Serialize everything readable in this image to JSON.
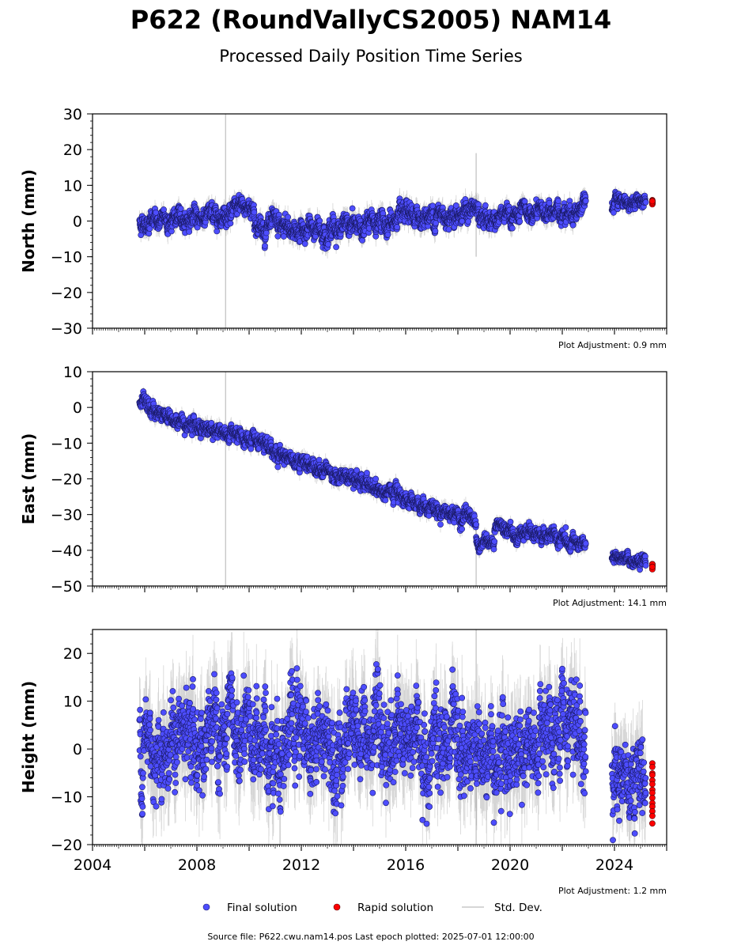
{
  "title": "P622 (RoundVallyCS2005) NAM14",
  "subtitle": "Processed Daily Position Time Series",
  "footer": "Source file: P622.cwu.nam14.pos  Last epoch plotted: 2025-07-01 12:00:00",
  "legend": {
    "final": "Final solution",
    "rapid": "Rapid solution",
    "std": "Std. Dev."
  },
  "colors": {
    "final": "#4d4dff",
    "rapid": "#ff0000",
    "std": "#b0b0b0",
    "outline": "#1a1a66"
  },
  "chart_data": [
    {
      "type": "scatter",
      "ylabel": "North (mm)",
      "ylim": [
        -30,
        30
      ],
      "yticks": [
        -30,
        -20,
        -10,
        0,
        10,
        20,
        30
      ],
      "xlim": [
        2004,
        2026
      ],
      "adjustment": "Plot Adjustment: 0.9 mm",
      "segments": [
        {
          "x": [
            2005.8,
            2008.0,
            2010.2
          ],
          "y": [
            -0.5,
            1.0,
            4.0
          ],
          "noise": 1.6
        },
        {
          "x": [
            2010.2,
            2012.0,
            2014.0,
            2016.0,
            2018.0,
            2018.8
          ],
          "y": [
            -1.5,
            -2.5,
            -1.5,
            0.5,
            2.5,
            3.0
          ],
          "noise": 1.8
        },
        {
          "x": [
            2018.8,
            2020.0,
            2022.9
          ],
          "y": [
            0.5,
            1.0,
            3.5
          ],
          "noise": 1.6
        },
        {
          "x": [
            2023.9,
            2025.2
          ],
          "y": [
            5.0,
            5.5
          ],
          "noise": 1.2
        }
      ],
      "rapid": {
        "x": [
          2025.2,
          2025.5
        ],
        "y": [
          5.0,
          5.5
        ]
      },
      "spikes": [
        {
          "x": 2009.1,
          "y0": -30,
          "y1": 30
        },
        {
          "x": 2018.7,
          "y0": -10,
          "y1": 19
        }
      ]
    },
    {
      "type": "scatter",
      "ylabel": "East (mm)",
      "ylim": [
        -50,
        10
      ],
      "yticks": [
        -50,
        -40,
        -30,
        -20,
        -10,
        0,
        10
      ],
      "xlim": [
        2004,
        2026
      ],
      "adjustment": "Plot Adjustment: 14.1 mm",
      "segments": [
        {
          "x": [
            2005.8,
            2007.0,
            2009.0,
            2012.0,
            2015.0,
            2018.7
          ],
          "y": [
            1.0,
            -3.0,
            -7.0,
            -15.0,
            -23.0,
            -32.0
          ],
          "noise": 1.3
        },
        {
          "x": [
            2018.7,
            2019.4
          ],
          "y": [
            -37.0,
            -39.5
          ],
          "noise": 1.2
        },
        {
          "x": [
            2019.4,
            2021.0,
            2022.9
          ],
          "y": [
            -34.0,
            -35.5,
            -38.5
          ],
          "noise": 1.2
        },
        {
          "x": [
            2023.9,
            2025.2
          ],
          "y": [
            -42.0,
            -44.0
          ],
          "noise": 1.0
        }
      ],
      "rapid": {
        "x": [
          2025.2,
          2025.5
        ],
        "y": [
          -44.0,
          -45.0
        ]
      },
      "spikes": [
        {
          "x": 2009.1,
          "y0": -50,
          "y1": 10
        },
        {
          "x": 2018.7,
          "y0": -50,
          "y1": -30
        }
      ]
    },
    {
      "type": "scatter",
      "ylabel": "Height (mm)",
      "ylim": [
        -20,
        25
      ],
      "yticks": [
        -20,
        -10,
        0,
        10,
        20
      ],
      "xlim": [
        2004,
        2026
      ],
      "xticks": [
        2004,
        2008,
        2012,
        2016,
        2020,
        2024
      ],
      "adjustment": "Plot Adjustment: 1.2 mm",
      "segments": [
        {
          "x": [
            2005.8,
            2010.0,
            2014.0,
            2018.0,
            2022.9
          ],
          "y": [
            2.0,
            1.0,
            2.5,
            0.0,
            1.0
          ],
          "noise": 5.5
        }
      ],
      "segments_late": [
        {
          "x": [
            2023.9,
            2025.2
          ],
          "y": [
            -4.0,
            -5.0
          ],
          "noise": 5.0
        }
      ],
      "rapid": {
        "x": [
          2025.2,
          2025.5
        ],
        "y": [
          -3.0,
          -15.0
        ]
      },
      "spikes": [
        {
          "x": 2018.7,
          "y0": -20,
          "y1": 25
        }
      ]
    }
  ]
}
